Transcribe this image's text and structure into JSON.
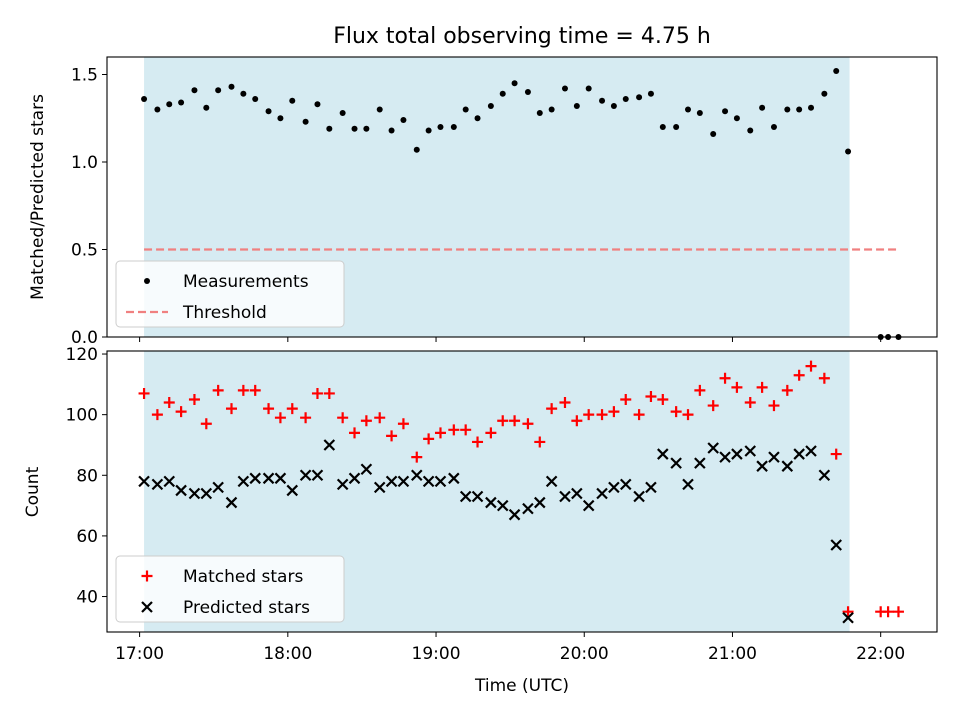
{
  "chart_data": {
    "title": "Flux total observing time = 4.75 h",
    "xlabel": "Time (UTC)",
    "x_ticks": [
      "17:00",
      "18:00",
      "19:00",
      "20:00",
      "21:00",
      "22:00"
    ],
    "x_tick_hours": [
      17,
      18,
      19,
      20,
      21,
      22
    ],
    "xlim": [
      16.78,
      22.38
    ],
    "shaded_span": [
      17.03,
      21.79
    ],
    "shade_color": "#add8e6",
    "panels": [
      {
        "type": "scatter",
        "ylabel": "Matched/Predicted stars",
        "ylim": [
          0,
          1.6
        ],
        "y_ticks": [
          0.0,
          0.5,
          1.0,
          1.5
        ],
        "y_tick_labels": [
          "0.0",
          "0.5",
          "1.0",
          "1.5"
        ],
        "legend_position": "lower-left",
        "series": [
          {
            "name": "Measurements",
            "marker": "dot",
            "color": "#000000",
            "points": [
              [
                17.03,
                1.36
              ],
              [
                17.12,
                1.3
              ],
              [
                17.2,
                1.33
              ],
              [
                17.28,
                1.34
              ],
              [
                17.37,
                1.41
              ],
              [
                17.45,
                1.31
              ],
              [
                17.53,
                1.41
              ],
              [
                17.62,
                1.43
              ],
              [
                17.7,
                1.39
              ],
              [
                17.78,
                1.36
              ],
              [
                17.87,
                1.29
              ],
              [
                17.95,
                1.25
              ],
              [
                18.03,
                1.35
              ],
              [
                18.12,
                1.23
              ],
              [
                18.2,
                1.33
              ],
              [
                18.28,
                1.19
              ],
              [
                18.37,
                1.28
              ],
              [
                18.45,
                1.19
              ],
              [
                18.53,
                1.19
              ],
              [
                18.62,
                1.3
              ],
              [
                18.7,
                1.18
              ],
              [
                18.78,
                1.24
              ],
              [
                18.87,
                1.07
              ],
              [
                18.95,
                1.18
              ],
              [
                19.03,
                1.2
              ],
              [
                19.12,
                1.2
              ],
              [
                19.2,
                1.3
              ],
              [
                19.28,
                1.25
              ],
              [
                19.37,
                1.32
              ],
              [
                19.45,
                1.39
              ],
              [
                19.53,
                1.45
              ],
              [
                19.62,
                1.4
              ],
              [
                19.7,
                1.28
              ],
              [
                19.78,
                1.3
              ],
              [
                19.87,
                1.42
              ],
              [
                19.95,
                1.32
              ],
              [
                20.03,
                1.42
              ],
              [
                20.12,
                1.35
              ],
              [
                20.2,
                1.32
              ],
              [
                20.28,
                1.36
              ],
              [
                20.37,
                1.37
              ],
              [
                20.45,
                1.39
              ],
              [
                20.53,
                1.2
              ],
              [
                20.62,
                1.2
              ],
              [
                20.7,
                1.3
              ],
              [
                20.78,
                1.28
              ],
              [
                20.87,
                1.16
              ],
              [
                20.95,
                1.29
              ],
              [
                21.03,
                1.25
              ],
              [
                21.12,
                1.18
              ],
              [
                21.2,
                1.31
              ],
              [
                21.28,
                1.2
              ],
              [
                21.37,
                1.3
              ],
              [
                21.45,
                1.3
              ],
              [
                21.53,
                1.31
              ],
              [
                21.62,
                1.39
              ],
              [
                21.7,
                1.52
              ],
              [
                21.78,
                1.06
              ],
              [
                22.0,
                0.0
              ],
              [
                22.05,
                0.0
              ],
              [
                22.12,
                0.0
              ]
            ]
          },
          {
            "name": "Threshold",
            "type": "line",
            "style": "dashed",
            "color": "#f08080",
            "x": [
              17.03,
              22.12
            ],
            "values": [
              0.5,
              0.5
            ]
          }
        ]
      },
      {
        "type": "scatter",
        "ylabel": "Count",
        "ylim": [
          28.3,
          121
        ],
        "y_ticks": [
          40,
          60,
          80,
          100,
          120
        ],
        "y_tick_labels": [
          "40",
          "60",
          "80",
          "100",
          "120"
        ],
        "legend_position": "lower-left",
        "series": [
          {
            "name": "Matched stars",
            "marker": "plus",
            "color": "#ff0000",
            "points": [
              [
                17.03,
                107
              ],
              [
                17.12,
                100
              ],
              [
                17.2,
                104
              ],
              [
                17.28,
                101
              ],
              [
                17.37,
                105
              ],
              [
                17.45,
                97
              ],
              [
                17.53,
                108
              ],
              [
                17.62,
                102
              ],
              [
                17.7,
                108
              ],
              [
                17.78,
                108
              ],
              [
                17.87,
                102
              ],
              [
                17.95,
                99
              ],
              [
                18.03,
                102
              ],
              [
                18.12,
                99
              ],
              [
                18.2,
                107
              ],
              [
                18.28,
                107
              ],
              [
                18.37,
                99
              ],
              [
                18.45,
                94
              ],
              [
                18.53,
                98
              ],
              [
                18.62,
                99
              ],
              [
                18.7,
                93
              ],
              [
                18.78,
                97
              ],
              [
                18.87,
                86
              ],
              [
                18.95,
                92
              ],
              [
                19.03,
                94
              ],
              [
                19.12,
                95
              ],
              [
                19.2,
                95
              ],
              [
                19.28,
                91
              ],
              [
                19.37,
                94
              ],
              [
                19.45,
                98
              ],
              [
                19.53,
                98
              ],
              [
                19.62,
                97
              ],
              [
                19.7,
                91
              ],
              [
                19.78,
                102
              ],
              [
                19.87,
                104
              ],
              [
                19.95,
                98
              ],
              [
                20.03,
                100
              ],
              [
                20.12,
                100
              ],
              [
                20.2,
                101
              ],
              [
                20.28,
                105
              ],
              [
                20.37,
                100
              ],
              [
                20.45,
                106
              ],
              [
                20.53,
                105
              ],
              [
                20.62,
                101
              ],
              [
                20.7,
                100
              ],
              [
                20.78,
                108
              ],
              [
                20.87,
                103
              ],
              [
                20.95,
                112
              ],
              [
                21.03,
                109
              ],
              [
                21.12,
                104
              ],
              [
                21.2,
                109
              ],
              [
                21.28,
                103
              ],
              [
                21.37,
                108
              ],
              [
                21.45,
                113
              ],
              [
                21.53,
                116
              ],
              [
                21.62,
                112
              ],
              [
                21.7,
                87
              ],
              [
                21.78,
                35
              ],
              [
                22.0,
                35
              ],
              [
                22.05,
                35
              ],
              [
                22.12,
                35
              ]
            ]
          },
          {
            "name": "Predicted stars",
            "marker": "x",
            "color": "#000000",
            "points": [
              [
                17.03,
                78
              ],
              [
                17.12,
                77
              ],
              [
                17.2,
                78
              ],
              [
                17.28,
                75
              ],
              [
                17.37,
                74
              ],
              [
                17.45,
                74
              ],
              [
                17.53,
                76
              ],
              [
                17.62,
                71
              ],
              [
                17.7,
                78
              ],
              [
                17.78,
                79
              ],
              [
                17.87,
                79
              ],
              [
                17.95,
                79
              ],
              [
                18.03,
                75
              ],
              [
                18.12,
                80
              ],
              [
                18.2,
                80
              ],
              [
                18.28,
                90
              ],
              [
                18.37,
                77
              ],
              [
                18.45,
                79
              ],
              [
                18.53,
                82
              ],
              [
                18.62,
                76
              ],
              [
                18.7,
                78
              ],
              [
                18.78,
                78
              ],
              [
                18.87,
                80
              ],
              [
                18.95,
                78
              ],
              [
                19.03,
                78
              ],
              [
                19.12,
                79
              ],
              [
                19.2,
                73
              ],
              [
                19.28,
                73
              ],
              [
                19.37,
                71
              ],
              [
                19.45,
                70
              ],
              [
                19.53,
                67
              ],
              [
                19.62,
                69
              ],
              [
                19.7,
                71
              ],
              [
                19.78,
                78
              ],
              [
                19.87,
                73
              ],
              [
                19.95,
                74
              ],
              [
                20.03,
                70
              ],
              [
                20.12,
                74
              ],
              [
                20.2,
                76
              ],
              [
                20.28,
                77
              ],
              [
                20.37,
                73
              ],
              [
                20.45,
                76
              ],
              [
                20.53,
                87
              ],
              [
                20.62,
                84
              ],
              [
                20.7,
                77
              ],
              [
                20.78,
                84
              ],
              [
                20.87,
                89
              ],
              [
                20.95,
                86
              ],
              [
                21.03,
                87
              ],
              [
                21.12,
                88
              ],
              [
                21.2,
                83
              ],
              [
                21.28,
                86
              ],
              [
                21.37,
                83
              ],
              [
                21.45,
                87
              ],
              [
                21.53,
                88
              ],
              [
                21.62,
                80
              ],
              [
                21.7,
                57
              ],
              [
                21.78,
                33
              ]
            ]
          }
        ]
      }
    ]
  }
}
